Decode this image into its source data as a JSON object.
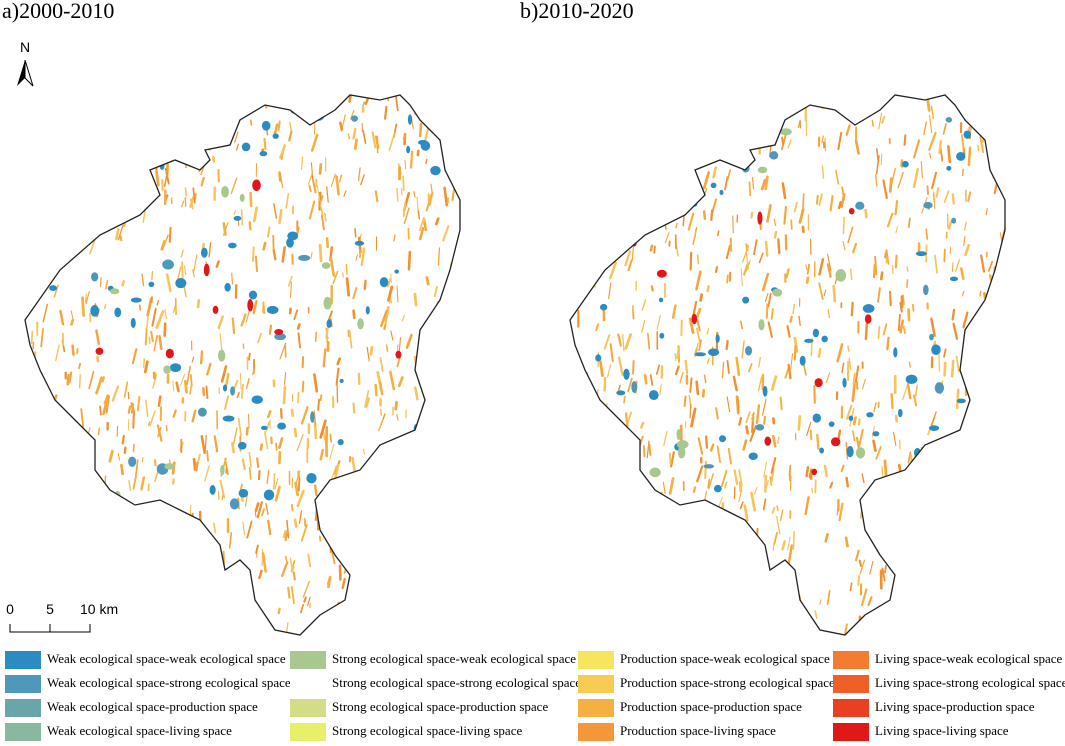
{
  "panels": [
    {
      "title": "a)2000-2010"
    },
    {
      "title": "b)2010-2020"
    }
  ],
  "north": "N",
  "scale_bar": {
    "labels": [
      "0",
      "5",
      "10 km"
    ]
  },
  "legend": [
    {
      "label": "Weak ecological space-weak ecological space",
      "color": "#2b8cc4"
    },
    {
      "label": "Weak ecological space-strong ecological space",
      "color": "#4f98bc"
    },
    {
      "label": "Weak ecological space-production space",
      "color": "#6aa5aa"
    },
    {
      "label": "Weak ecological space-living space",
      "color": "#89b8a0"
    },
    {
      "label": "Strong ecological space-weak ecological space",
      "color": "#a8c890"
    },
    {
      "label": "Strong ecological space-strong ecological space",
      "color": "#ffffff"
    },
    {
      "label": "Strong ecological space-production space",
      "color": "#d4dc88"
    },
    {
      "label": "Strong ecological space-living space",
      "color": "#e8f06a"
    },
    {
      "label": "Production space-weak ecological space",
      "color": "#f6e65e"
    },
    {
      "label": "Production space-strong ecological space",
      "color": "#f7cc55"
    },
    {
      "label": "Production space-production space",
      "color": "#f5b040"
    },
    {
      "label": "Production space-living space",
      "color": "#f4963a"
    },
    {
      "label": "Living space-weak ecological space",
      "color": "#f47c30"
    },
    {
      "label": "Living space-strong ecological space",
      "color": "#ef6028"
    },
    {
      "label": "Living space-production space",
      "color": "#e84020"
    },
    {
      "label": "Living space-living space",
      "color": "#e01818"
    }
  ]
}
